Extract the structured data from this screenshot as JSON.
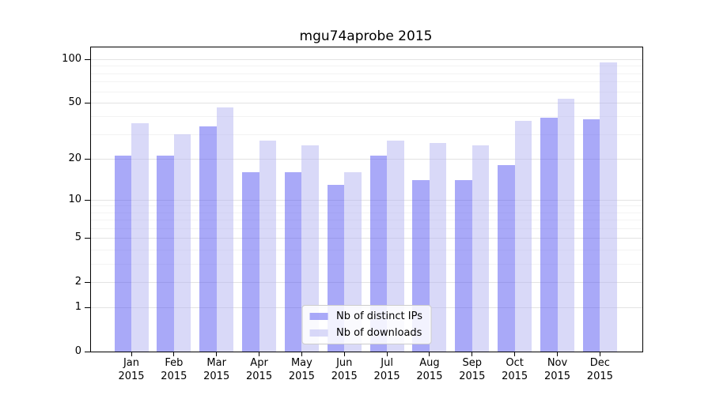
{
  "chart_data": {
    "type": "bar",
    "title": "mgu74aprobe 2015",
    "year_label": "2015",
    "months": [
      "Jan",
      "Feb",
      "Mar",
      "Apr",
      "May",
      "Jun",
      "Jul",
      "Aug",
      "Sep",
      "Oct",
      "Nov",
      "Dec"
    ],
    "series": [
      {
        "name": "Nb of distinct IPs",
        "color_hex": "#a9a9f8",
        "fill_rgba": "rgba(84,84,241,0.5)",
        "values": [
          21,
          21,
          34,
          16,
          16,
          13,
          21,
          14,
          14,
          18,
          39,
          38
        ]
      },
      {
        "name": "Nb of downloads",
        "color_hex": "#d9d9f8",
        "fill_rgba": "rgba(179,179,241,0.5)",
        "values": [
          36,
          30,
          46,
          27,
          25,
          16,
          27,
          26,
          25,
          37,
          53,
          95
        ]
      }
    ],
    "scale": "log1p",
    "y_ticks": [
      0,
      1,
      2,
      5,
      10,
      20,
      50,
      100
    ],
    "y_minor_gridlines": [
      3,
      4,
      6,
      7,
      8,
      9,
      30,
      40,
      60,
      70,
      80,
      90
    ],
    "ylim": [
      0,
      121
    ],
    "grid": true,
    "legend_position": "lower center",
    "colors": {
      "major_grid": "#e3e3e3",
      "minor_grid": "#f3f3f3",
      "axis": "#000000",
      "background": "#ffffff"
    }
  }
}
